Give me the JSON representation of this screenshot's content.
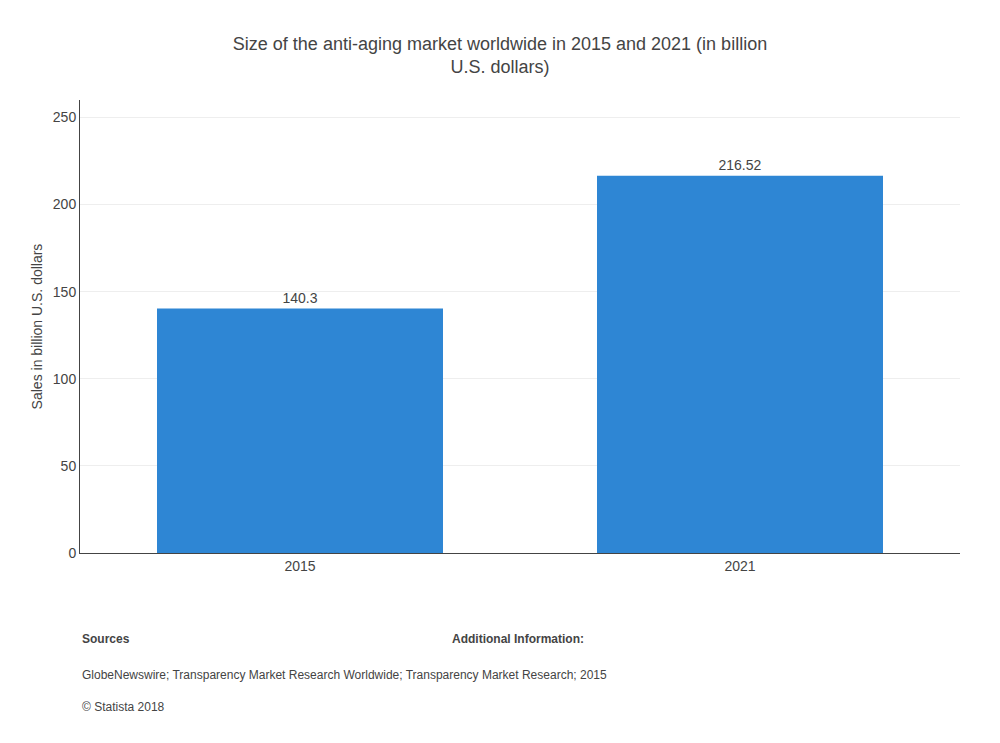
{
  "chart_data": {
    "type": "bar",
    "title": "Size of the anti-aging market worldwide in 2015 and 2021 (in billion\nU.S. dollars)",
    "categories": [
      "2015",
      "2021"
    ],
    "values": [
      140.3,
      216.52
    ],
    "color": "#2e86d4",
    "ylabel": "Sales in billion U.S. dollars",
    "ylim": [
      0,
      260
    ],
    "yticks": [
      0,
      50,
      100,
      150,
      200,
      250
    ],
    "grid": true,
    "data_labels": true,
    "annotations": [
      "Sources",
      "Additional Information:",
      "GlobeNewswire; Transparency Market Research Worldwide; Transparency Market Research; 2015",
      "© Statista 2018"
    ]
  }
}
